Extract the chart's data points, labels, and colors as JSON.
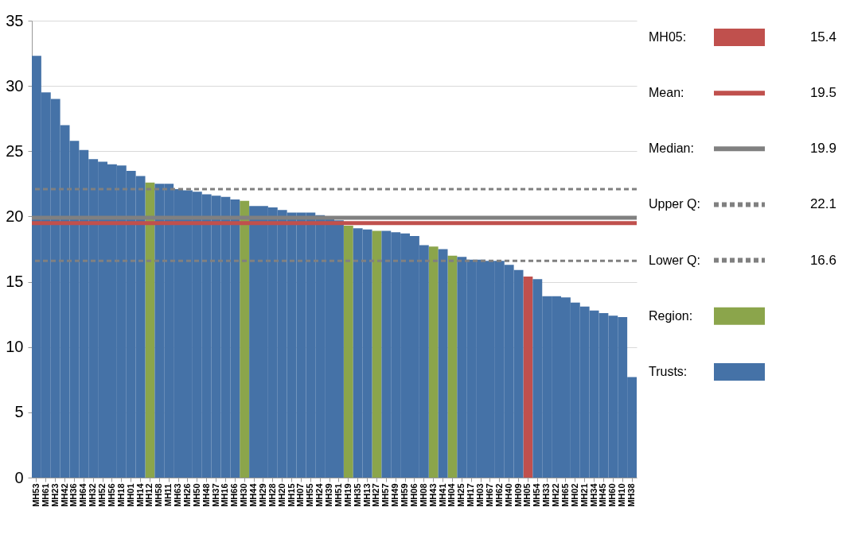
{
  "chart_data": {
    "type": "bar",
    "categories": [
      "MH53",
      "MH61",
      "MH23",
      "MH42",
      "MH36",
      "MH64",
      "MH32",
      "MH52",
      "MH56",
      "MH18",
      "MH01",
      "MH14",
      "MH12",
      "MH58",
      "MH11",
      "MH63",
      "MH26",
      "MH50",
      "MH48",
      "MH37",
      "MH16",
      "MH66",
      "MH30",
      "MH44",
      "MH29",
      "MH28",
      "MH20",
      "MH15",
      "MH07",
      "MH55",
      "MH24",
      "MH39",
      "MH51",
      "MH19",
      "MH35",
      "MH13",
      "MH27",
      "MH57",
      "MH49",
      "MH59",
      "MH06",
      "MH08",
      "MH43",
      "MH41",
      "MH04",
      "MH25",
      "MH17",
      "MH03",
      "MH67",
      "MH62",
      "MH40",
      "MH09",
      "MH05",
      "MH54",
      "MH33",
      "MH22",
      "MH65",
      "MH02",
      "MH21",
      "MH34",
      "MH45",
      "MH60",
      "MH10",
      "MH38"
    ],
    "series": [
      {
        "name": "MH05:",
        "color": "#c0504d",
        "values": [
          null,
          null,
          null,
          null,
          null,
          null,
          null,
          null,
          null,
          null,
          null,
          null,
          null,
          null,
          null,
          null,
          null,
          null,
          null,
          null,
          null,
          null,
          null,
          null,
          null,
          null,
          null,
          null,
          null,
          null,
          null,
          null,
          null,
          null,
          null,
          null,
          null,
          null,
          null,
          null,
          null,
          null,
          null,
          null,
          null,
          null,
          null,
          null,
          null,
          null,
          null,
          null,
          15.4,
          null,
          null,
          null,
          null,
          null,
          null,
          null,
          null,
          null,
          null,
          null
        ]
      },
      {
        "name": "Region:",
        "color": "#8ba54b",
        "values": [
          null,
          null,
          null,
          null,
          null,
          null,
          null,
          null,
          null,
          null,
          null,
          null,
          22.6,
          null,
          null,
          null,
          null,
          null,
          null,
          null,
          null,
          null,
          21.2,
          null,
          null,
          null,
          null,
          null,
          null,
          null,
          null,
          null,
          null,
          19.3,
          null,
          null,
          18.9,
          null,
          null,
          null,
          null,
          null,
          17.7,
          null,
          17.0,
          null,
          null,
          null,
          null,
          null,
          null,
          null,
          null,
          null,
          null,
          null,
          null,
          null,
          null,
          null,
          null,
          null,
          null,
          null
        ]
      },
      {
        "name": "Trusts:",
        "color": "#4572a7",
        "values": [
          32.3,
          29.5,
          29.0,
          27.0,
          25.8,
          25.1,
          24.4,
          24.2,
          24.0,
          23.9,
          23.5,
          23.1,
          null,
          22.5,
          22.5,
          22.1,
          22.0,
          21.9,
          21.7,
          21.6,
          21.5,
          21.3,
          null,
          20.8,
          20.8,
          20.7,
          20.5,
          20.3,
          20.3,
          20.3,
          20.1,
          20.0,
          19.7,
          null,
          19.1,
          19.0,
          null,
          18.9,
          18.8,
          18.7,
          18.5,
          17.8,
          null,
          17.5,
          null,
          16.9,
          16.7,
          16.7,
          16.6,
          16.6,
          16.3,
          15.9,
          null,
          15.2,
          13.9,
          13.9,
          13.8,
          13.4,
          13.1,
          12.8,
          12.6,
          12.4,
          12.3,
          7.7
        ]
      }
    ],
    "annotations": [
      "15.4",
      "19.5",
      "19.9",
      "22.1",
      "16.6"
    ],
    "ylim": [
      0,
      35
    ],
    "yticks": [
      0,
      5,
      10,
      15,
      20,
      25,
      30,
      35
    ],
    "grid": "y",
    "legend": "right",
    "ref_lines": [
      {
        "axis": "y",
        "value": 19.5,
        "label": "Mean:",
        "color": "#c0504d",
        "line_style": "solid"
      },
      {
        "axis": "y",
        "value": 19.9,
        "label": "Median:",
        "color": "#808080",
        "line_style": "solid"
      },
      {
        "axis": "y",
        "value": 22.1,
        "label": "Upper Q:",
        "color": "#808080",
        "line_style": "dashed"
      },
      {
        "axis": "y",
        "value": 16.6,
        "label": "Lower Q:",
        "color": "#808080",
        "line_style": "dashed"
      }
    ]
  }
}
